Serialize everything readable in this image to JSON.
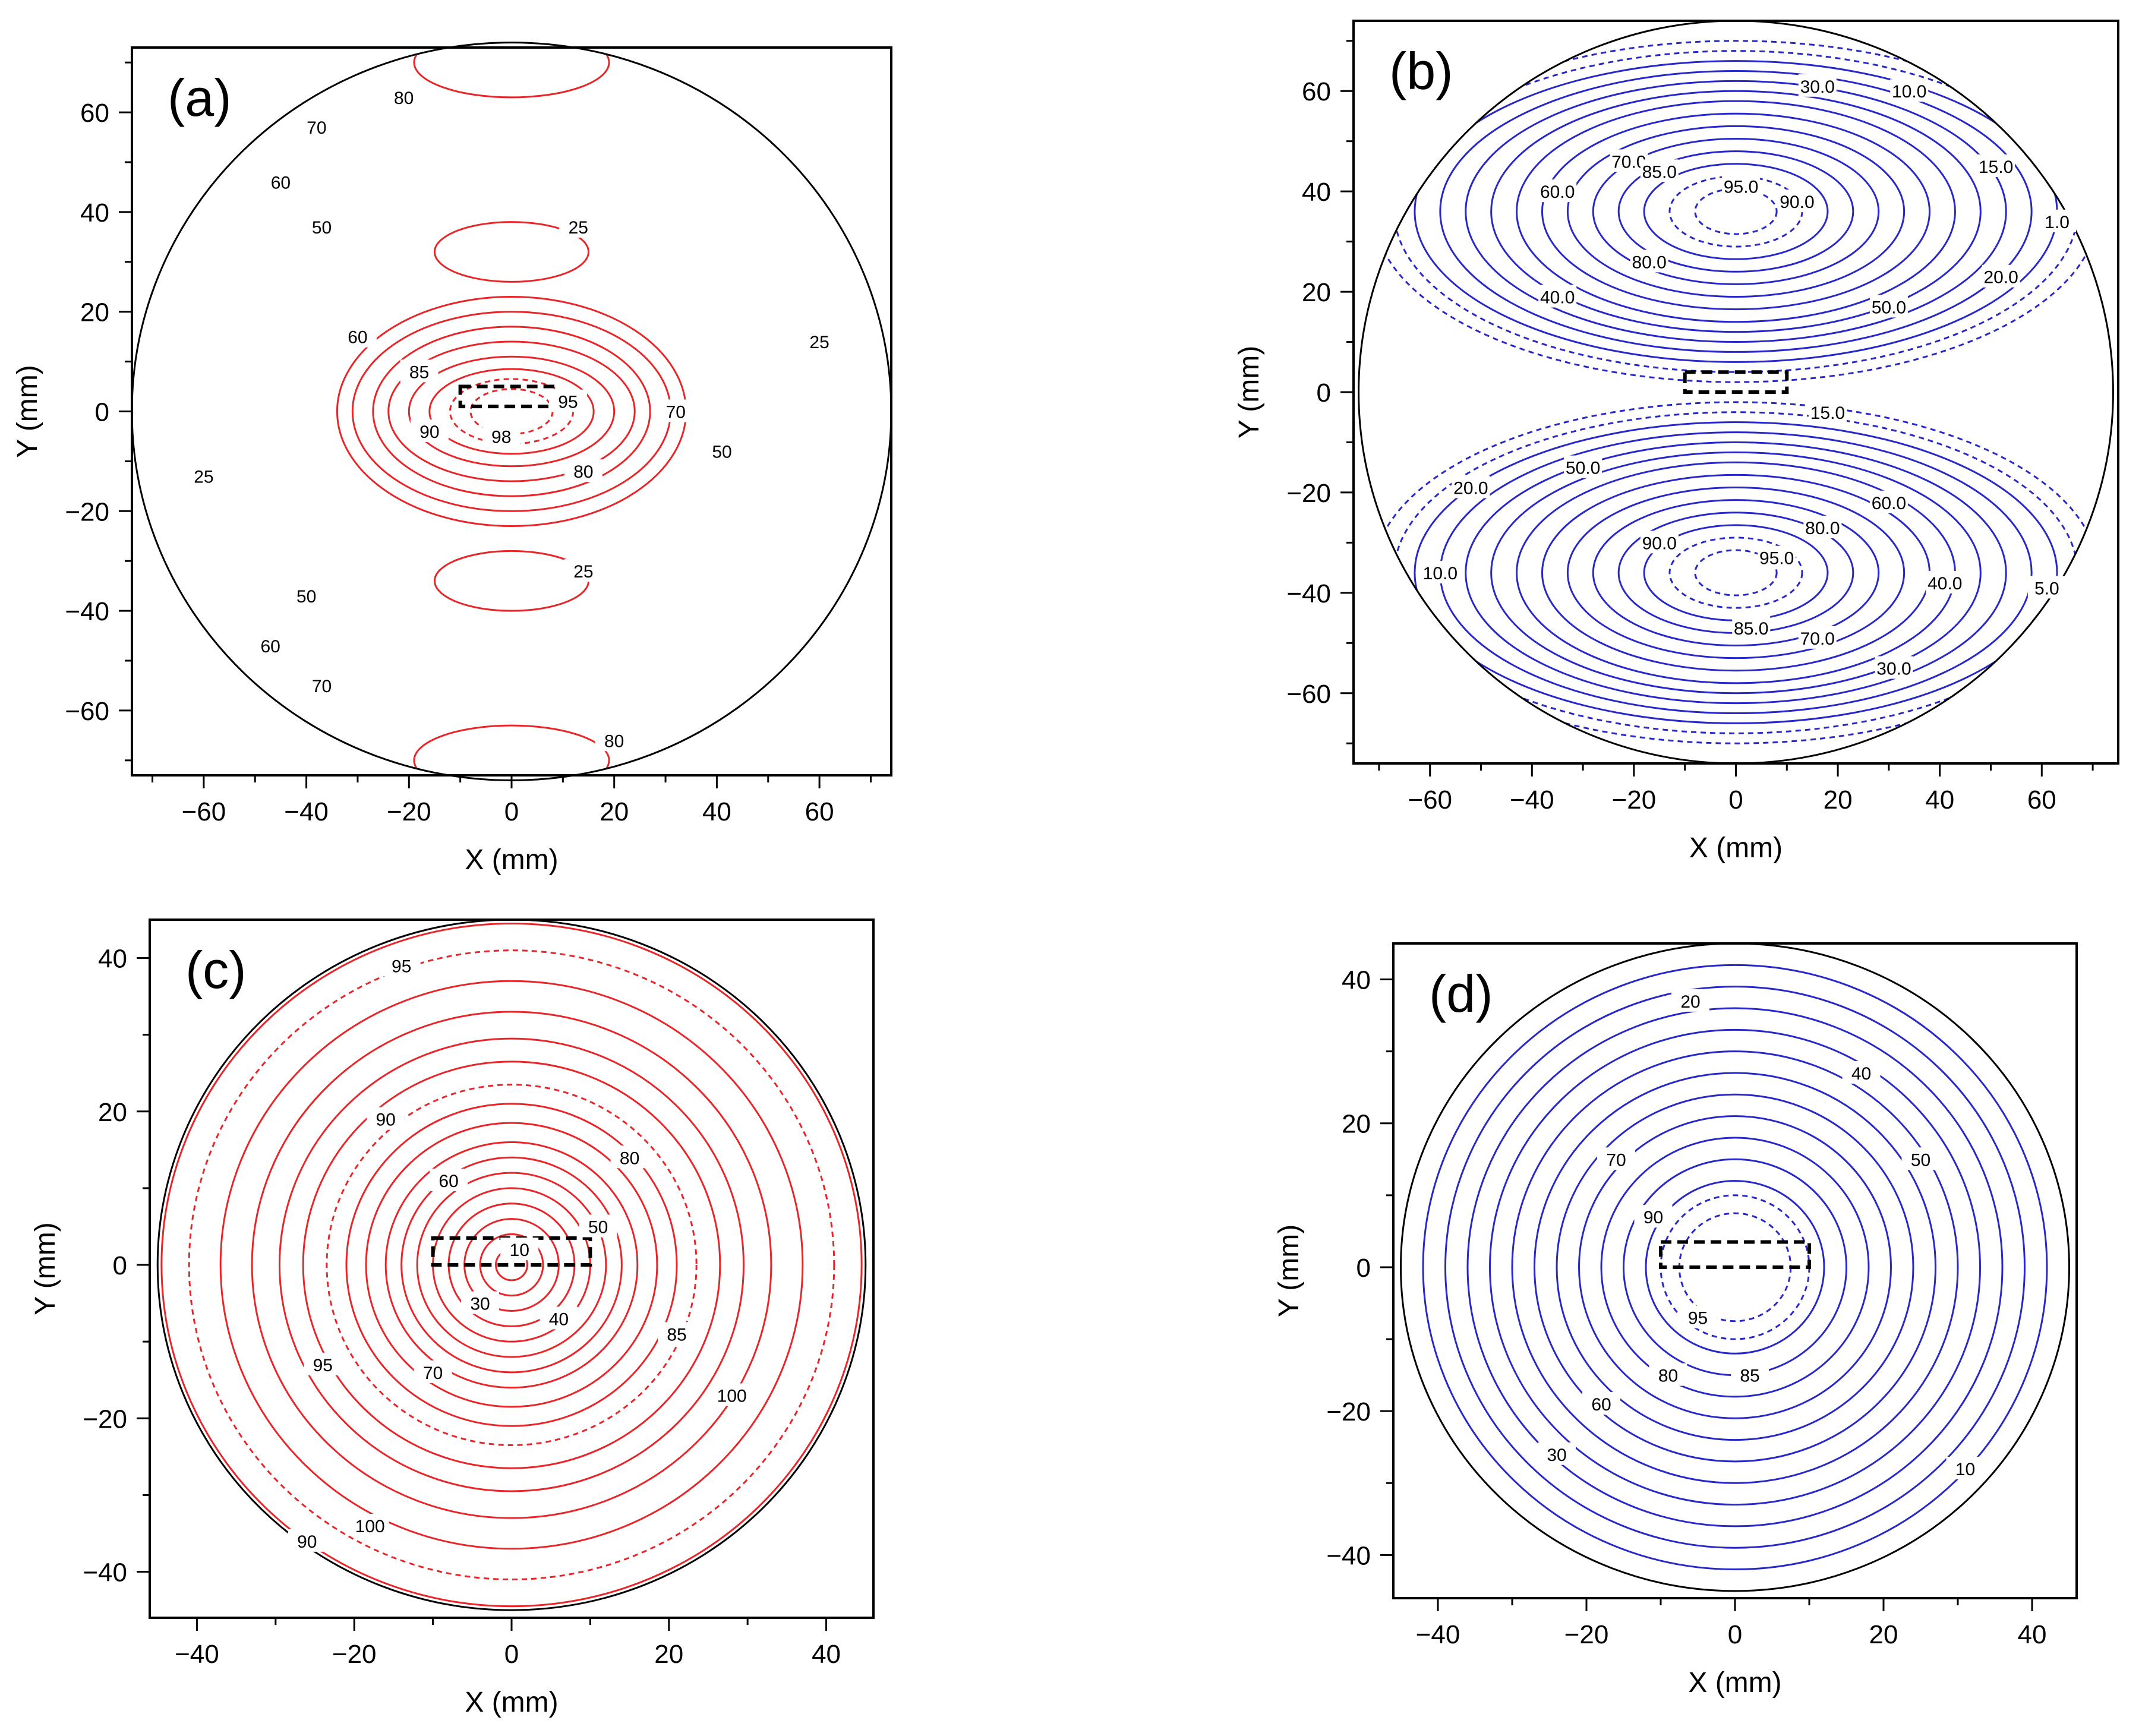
{
  "chart_data": [
    {
      "type": "contour",
      "panel_label": "(a)",
      "xlabel": "X (mm)",
      "ylabel": "Y (mm)",
      "xlim": [
        -74,
        74
      ],
      "ylim": [
        -73,
        73
      ],
      "xticks": [
        -60,
        -40,
        -20,
        0,
        20,
        40,
        60
      ],
      "yticks": [
        -60,
        -40,
        -20,
        0,
        20,
        40,
        60
      ],
      "boundary_radius": 74,
      "contour_color": "#e8262a",
      "dashed_rectangle": {
        "x": [
          -10,
          8
        ],
        "y": [
          1,
          5
        ]
      },
      "contours": [
        {
          "shape": "ellipse",
          "cx": 0,
          "cy": 0,
          "rx": 34,
          "ry": 23,
          "style": "solid"
        },
        {
          "shape": "ellipse",
          "cx": 0,
          "cy": 0,
          "rx": 31,
          "ry": 20,
          "style": "solid"
        },
        {
          "shape": "ellipse",
          "cx": 0,
          "cy": 0,
          "rx": 27,
          "ry": 17,
          "style": "solid",
          "level": "70"
        },
        {
          "shape": "ellipse",
          "cx": 0,
          "cy": 0,
          "rx": 24,
          "ry": 14,
          "style": "solid",
          "level": "80"
        },
        {
          "shape": "ellipse",
          "cx": 0,
          "cy": 0,
          "rx": 20,
          "ry": 11,
          "style": "solid",
          "level": "85"
        },
        {
          "shape": "ellipse",
          "cx": 0,
          "cy": 0,
          "rx": 16,
          "ry": 8.5,
          "style": "solid",
          "level": "90"
        },
        {
          "shape": "ellipse",
          "cx": 0,
          "cy": 0,
          "rx": 12,
          "ry": 6.5,
          "style": "dashed",
          "level": "95"
        },
        {
          "shape": "ellipse",
          "cx": 0,
          "cy": 0,
          "rx": 8,
          "ry": 4.5,
          "style": "dashed",
          "level": "98"
        },
        {
          "shape": "ellipse",
          "cx": 0,
          "cy": 32,
          "rx": 15,
          "ry": 6,
          "style": "solid",
          "level": "25"
        },
        {
          "shape": "ellipse",
          "cx": 0,
          "cy": -34,
          "rx": 15,
          "ry": 6,
          "style": "solid",
          "level": "25"
        },
        {
          "shape": "ellipse",
          "cx": 0,
          "cy": 70,
          "rx": 19,
          "ry": 7,
          "style": "solid",
          "level": "80"
        },
        {
          "shape": "ellipse",
          "cx": 0,
          "cy": -70,
          "rx": 19,
          "ry": 7,
          "style": "solid",
          "level": "80"
        }
      ],
      "labels": [
        {
          "text": "80",
          "x": -21,
          "y": 63
        },
        {
          "text": "70",
          "x": -38,
          "y": 57
        },
        {
          "text": "60",
          "x": -45,
          "y": 46
        },
        {
          "text": "50",
          "x": -37,
          "y": 37
        },
        {
          "text": "25",
          "x": 13,
          "y": 37
        },
        {
          "text": "60",
          "x": -30,
          "y": 15
        },
        {
          "text": "25",
          "x": 60,
          "y": 14
        },
        {
          "text": "85",
          "x": -18,
          "y": 8
        },
        {
          "text": "95",
          "x": 11,
          "y": 2
        },
        {
          "text": "70",
          "x": 32,
          "y": 0
        },
        {
          "text": "90",
          "x": -16,
          "y": -4
        },
        {
          "text": "98",
          "x": -2,
          "y": -5
        },
        {
          "text": "80",
          "x": 14,
          "y": -12
        },
        {
          "text": "50",
          "x": 41,
          "y": -8
        },
        {
          "text": "25",
          "x": -60,
          "y": -13
        },
        {
          "text": "25",
          "x": 14,
          "y": -32
        },
        {
          "text": "50",
          "x": -40,
          "y": -37
        },
        {
          "text": "60",
          "x": -47,
          "y": -47
        },
        {
          "text": "70",
          "x": -37,
          "y": -55
        },
        {
          "text": "80",
          "x": 20,
          "y": -66
        }
      ]
    },
    {
      "type": "contour",
      "panel_label": "(b)",
      "xlabel": "X (mm)",
      "ylabel": "Y (mm)",
      "xlim": [
        -75,
        75
      ],
      "ylim": [
        -74,
        74
      ],
      "xticks": [
        -60,
        -40,
        -20,
        0,
        20,
        40,
        60
      ],
      "yticks": [
        -60,
        -40,
        -20,
        0,
        20,
        40,
        60
      ],
      "boundary_radius": 74,
      "contour_color": "#2828c8",
      "dashed_rectangle": {
        "x": [
          -10,
          10
        ],
        "y": [
          0,
          4
        ]
      },
      "contours": [
        {
          "shape": "ellipse",
          "cx": 0,
          "cy": 36,
          "rx": 71,
          "ry": 34,
          "style": "dashed"
        },
        {
          "shape": "ellipse",
          "cx": 0,
          "cy": 36,
          "rx": 67,
          "ry": 32,
          "style": "dashed"
        },
        {
          "shape": "ellipse",
          "cx": 0,
          "cy": 36,
          "rx": 63,
          "ry": 30,
          "style": "solid"
        },
        {
          "shape": "ellipse",
          "cx": 0,
          "cy": 36,
          "rx": 58,
          "ry": 28,
          "style": "solid"
        },
        {
          "shape": "ellipse",
          "cx": 0,
          "cy": 36,
          "rx": 53,
          "ry": 26,
          "style": "solid"
        },
        {
          "shape": "ellipse",
          "cx": 0,
          "cy": 36,
          "rx": 48,
          "ry": 24,
          "style": "solid"
        },
        {
          "shape": "ellipse",
          "cx": 0,
          "cy": 36,
          "rx": 43,
          "ry": 22,
          "style": "solid"
        },
        {
          "shape": "ellipse",
          "cx": 0,
          "cy": 36,
          "rx": 38,
          "ry": 19.5,
          "style": "solid"
        },
        {
          "shape": "ellipse",
          "cx": 0,
          "cy": 36,
          "rx": 33,
          "ry": 17,
          "style": "solid"
        },
        {
          "shape": "ellipse",
          "cx": 0,
          "cy": 36,
          "rx": 28,
          "ry": 14.5,
          "style": "solid"
        },
        {
          "shape": "ellipse",
          "cx": 0,
          "cy": 36,
          "rx": 23,
          "ry": 12,
          "style": "solid"
        },
        {
          "shape": "ellipse",
          "cx": 0,
          "cy": 36,
          "rx": 18,
          "ry": 9.5,
          "style": "solid"
        },
        {
          "shape": "ellipse",
          "cx": 0,
          "cy": 36,
          "rx": 13,
          "ry": 7,
          "style": "dashed"
        },
        {
          "shape": "ellipse",
          "cx": 0,
          "cy": 36,
          "rx": 8,
          "ry": 4.5,
          "style": "dashed"
        },
        {
          "shape": "ellipse",
          "cx": 0,
          "cy": -36,
          "rx": 71,
          "ry": 34,
          "style": "dashed"
        },
        {
          "shape": "ellipse",
          "cx": 0,
          "cy": -36,
          "rx": 67,
          "ry": 32,
          "style": "dashed"
        },
        {
          "shape": "ellipse",
          "cx": 0,
          "cy": -36,
          "rx": 63,
          "ry": 30,
          "style": "solid"
        },
        {
          "shape": "ellipse",
          "cx": 0,
          "cy": -36,
          "rx": 58,
          "ry": 28,
          "style": "solid"
        },
        {
          "shape": "ellipse",
          "cx": 0,
          "cy": -36,
          "rx": 53,
          "ry": 26,
          "style": "solid"
        },
        {
          "shape": "ellipse",
          "cx": 0,
          "cy": -36,
          "rx": 48,
          "ry": 24,
          "style": "solid"
        },
        {
          "shape": "ellipse",
          "cx": 0,
          "cy": -36,
          "rx": 43,
          "ry": 22,
          "style": "solid"
        },
        {
          "shape": "ellipse",
          "cx": 0,
          "cy": -36,
          "rx": 38,
          "ry": 19.5,
          "style": "solid"
        },
        {
          "shape": "ellipse",
          "cx": 0,
          "cy": -36,
          "rx": 33,
          "ry": 17,
          "style": "solid"
        },
        {
          "shape": "ellipse",
          "cx": 0,
          "cy": -36,
          "rx": 28,
          "ry": 14.5,
          "style": "solid"
        },
        {
          "shape": "ellipse",
          "cx": 0,
          "cy": -36,
          "rx": 23,
          "ry": 12,
          "style": "solid"
        },
        {
          "shape": "ellipse",
          "cx": 0,
          "cy": -36,
          "rx": 18,
          "ry": 9.5,
          "style": "solid"
        },
        {
          "shape": "ellipse",
          "cx": 0,
          "cy": -36,
          "rx": 13,
          "ry": 7,
          "style": "dashed"
        },
        {
          "shape": "ellipse",
          "cx": 0,
          "cy": -36,
          "rx": 8,
          "ry": 4.5,
          "style": "dashed"
        }
      ],
      "labels": [
        {
          "text": "30.0",
          "x": 16,
          "y": 61
        },
        {
          "text": "10.0",
          "x": 34,
          "y": 60
        },
        {
          "text": "15.0",
          "x": 51,
          "y": 45
        },
        {
          "text": "1.0",
          "x": 63,
          "y": 34
        },
        {
          "text": "70.0",
          "x": -21,
          "y": 46
        },
        {
          "text": "85.0",
          "x": -15,
          "y": 44
        },
        {
          "text": "95.0",
          "x": 1,
          "y": 41
        },
        {
          "text": "90.0",
          "x": 12,
          "y": 38
        },
        {
          "text": "60.0",
          "x": -35,
          "y": 40
        },
        {
          "text": "80.0",
          "x": -17,
          "y": 26
        },
        {
          "text": "20.0",
          "x": 52,
          "y": 23
        },
        {
          "text": "40.0",
          "x": -35,
          "y": 19
        },
        {
          "text": "50.0",
          "x": 30,
          "y": 17
        },
        {
          "text": "15.0",
          "x": 18,
          "y": -4
        },
        {
          "text": "50.0",
          "x": -30,
          "y": -15
        },
        {
          "text": "20.0",
          "x": -52,
          "y": -19
        },
        {
          "text": "60.0",
          "x": 30,
          "y": -22
        },
        {
          "text": "80.0",
          "x": 17,
          "y": -27
        },
        {
          "text": "90.0",
          "x": -15,
          "y": -30
        },
        {
          "text": "95.0",
          "x": 8,
          "y": -33
        },
        {
          "text": "10.0",
          "x": -58,
          "y": -36
        },
        {
          "text": "40.0",
          "x": 41,
          "y": -38
        },
        {
          "text": "5.0",
          "x": 61,
          "y": -39
        },
        {
          "text": "85.0",
          "x": 3,
          "y": -47
        },
        {
          "text": "70.0",
          "x": 16,
          "y": -49
        },
        {
          "text": "30.0",
          "x": 31,
          "y": -55
        }
      ]
    },
    {
      "type": "contour",
      "panel_label": "(c)",
      "xlabel": "X (mm)",
      "ylabel": "Y (mm)",
      "xlim": [
        -46,
        46
      ],
      "ylim": [
        -46,
        45
      ],
      "xticks": [
        -40,
        -20,
        0,
        20,
        40
      ],
      "yticks": [
        -40,
        -20,
        0,
        20,
        40
      ],
      "boundary_radius": 45,
      "contour_color": "#e8262a",
      "dashed_rectangle": {
        "x": [
          -10,
          10
        ],
        "y": [
          0,
          3.5
        ]
      },
      "contours": [
        {
          "shape": "ellipse",
          "cx": 0,
          "cy": 0,
          "rx": 2,
          "ry": 2,
          "style": "solid"
        },
        {
          "shape": "ellipse",
          "cx": 0,
          "cy": 0,
          "rx": 4,
          "ry": 4,
          "style": "solid"
        },
        {
          "shape": "ellipse",
          "cx": 0,
          "cy": 0,
          "rx": 6,
          "ry": 6,
          "style": "solid"
        },
        {
          "shape": "ellipse",
          "cx": 0,
          "cy": 0,
          "rx": 8,
          "ry": 8,
          "style": "solid"
        },
        {
          "shape": "ellipse",
          "cx": 0,
          "cy": 0,
          "rx": 10,
          "ry": 10,
          "style": "solid"
        },
        {
          "shape": "ellipse",
          "cx": 0,
          "cy": 0,
          "rx": 12,
          "ry": 12,
          "style": "solid"
        },
        {
          "shape": "ellipse",
          "cx": 0,
          "cy": 0,
          "rx": 14,
          "ry": 14,
          "style": "solid"
        },
        {
          "shape": "ellipse",
          "cx": 0,
          "cy": 0,
          "rx": 16,
          "ry": 16,
          "style": "solid"
        },
        {
          "shape": "ellipse",
          "cx": 0,
          "cy": 0,
          "rx": 18.5,
          "ry": 18.5,
          "style": "solid"
        },
        {
          "shape": "ellipse",
          "cx": 0,
          "cy": 0,
          "rx": 21,
          "ry": 21,
          "style": "solid"
        },
        {
          "shape": "ellipse",
          "cx": 0,
          "cy": 0,
          "rx": 23.5,
          "ry": 23.5,
          "style": "dashed"
        },
        {
          "shape": "ellipse",
          "cx": 0,
          "cy": 0,
          "rx": 26.5,
          "ry": 26.5,
          "style": "solid"
        },
        {
          "shape": "ellipse",
          "cx": 0,
          "cy": 0,
          "rx": 29.5,
          "ry": 29.5,
          "style": "solid"
        },
        {
          "shape": "ellipse",
          "cx": 0,
          "cy": 0,
          "rx": 33,
          "ry": 33,
          "style": "solid"
        },
        {
          "shape": "ellipse",
          "cx": 0,
          "cy": 0,
          "rx": 37,
          "ry": 37,
          "style": "solid"
        },
        {
          "shape": "ellipse",
          "cx": 0,
          "cy": 0,
          "rx": 41,
          "ry": 41,
          "style": "dashed"
        },
        {
          "shape": "ellipse",
          "cx": 0,
          "cy": 0,
          "rx": 44.5,
          "ry": 44.5,
          "style": "solid"
        }
      ],
      "labels": [
        {
          "text": "95",
          "x": -14,
          "y": 39
        },
        {
          "text": "90",
          "x": -16,
          "y": 19
        },
        {
          "text": "80",
          "x": 15,
          "y": 14
        },
        {
          "text": "60",
          "x": -8,
          "y": 11
        },
        {
          "text": "50",
          "x": 11,
          "y": 5
        },
        {
          "text": "10",
          "x": 1,
          "y": 2
        },
        {
          "text": "30",
          "x": -4,
          "y": -5
        },
        {
          "text": "40",
          "x": 6,
          "y": -7
        },
        {
          "text": "85",
          "x": 21,
          "y": -9
        },
        {
          "text": "95",
          "x": -24,
          "y": -13
        },
        {
          "text": "70",
          "x": -10,
          "y": -14
        },
        {
          "text": "100",
          "x": 28,
          "y": -17
        },
        {
          "text": "100",
          "x": -18,
          "y": -34
        },
        {
          "text": "90",
          "x": -26,
          "y": -36
        }
      ]
    },
    {
      "type": "contour",
      "panel_label": "(d)",
      "xlabel": "X (mm)",
      "ylabel": "Y (mm)",
      "xlim": [
        -46,
        46
      ],
      "ylim": [
        -46,
        45
      ],
      "xticks": [
        -40,
        -20,
        0,
        20,
        40
      ],
      "yticks": [
        -40,
        -20,
        0,
        20,
        40
      ],
      "boundary_radius": 45,
      "contour_color": "#2828c8",
      "dashed_rectangle": {
        "x": [
          -10,
          10
        ],
        "y": [
          0,
          3.5
        ]
      },
      "contours": [
        {
          "shape": "ellipse",
          "cx": 0,
          "cy": 0,
          "rx": 42,
          "ry": 42,
          "style": "solid"
        },
        {
          "shape": "ellipse",
          "cx": 0,
          "cy": 0,
          "rx": 39,
          "ry": 39,
          "style": "solid"
        },
        {
          "shape": "ellipse",
          "cx": 0,
          "cy": 0,
          "rx": 36,
          "ry": 36,
          "style": "solid"
        },
        {
          "shape": "ellipse",
          "cx": 0,
          "cy": 0,
          "rx": 33,
          "ry": 33,
          "style": "solid"
        },
        {
          "shape": "ellipse",
          "cx": 0,
          "cy": 0,
          "rx": 30,
          "ry": 30,
          "style": "solid"
        },
        {
          "shape": "ellipse",
          "cx": 0,
          "cy": 0,
          "rx": 27,
          "ry": 27,
          "style": "solid"
        },
        {
          "shape": "ellipse",
          "cx": 0,
          "cy": 0,
          "rx": 24,
          "ry": 24,
          "style": "solid"
        },
        {
          "shape": "ellipse",
          "cx": 0,
          "cy": 0,
          "rx": 21,
          "ry": 21,
          "style": "solid"
        },
        {
          "shape": "ellipse",
          "cx": 0,
          "cy": 0,
          "rx": 18,
          "ry": 18,
          "style": "solid"
        },
        {
          "shape": "ellipse",
          "cx": 0,
          "cy": 0,
          "rx": 15,
          "ry": 15,
          "style": "solid"
        },
        {
          "shape": "ellipse",
          "cx": 0,
          "cy": 0,
          "rx": 12,
          "ry": 12,
          "style": "solid"
        },
        {
          "shape": "ellipse",
          "cx": 0,
          "cy": 0,
          "rx": 10,
          "ry": 10,
          "style": "dashed"
        },
        {
          "shape": "ellipse",
          "cx": 0,
          "cy": 0,
          "rx": 7.5,
          "ry": 7.5,
          "style": "dashed"
        }
      ],
      "labels": [
        {
          "text": "20",
          "x": -6,
          "y": 37
        },
        {
          "text": "40",
          "x": 17,
          "y": 27
        },
        {
          "text": "50",
          "x": 25,
          "y": 15
        },
        {
          "text": "70",
          "x": -16,
          "y": 15
        },
        {
          "text": "90",
          "x": -11,
          "y": 7
        },
        {
          "text": "95",
          "x": -5,
          "y": -7
        },
        {
          "text": "80",
          "x": -9,
          "y": -15
        },
        {
          "text": "85",
          "x": 2,
          "y": -15
        },
        {
          "text": "60",
          "x": -18,
          "y": -19
        },
        {
          "text": "30",
          "x": -24,
          "y": -26
        },
        {
          "text": "10",
          "x": 31,
          "y": -28
        }
      ]
    }
  ]
}
